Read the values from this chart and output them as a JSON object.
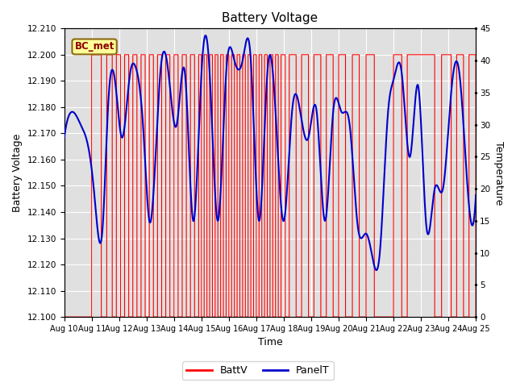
{
  "title": "Battery Voltage",
  "xlabel": "Time",
  "ylabel_left": "Battery Voltage",
  "ylabel_right": "Temperature",
  "station_label": "BC_met",
  "xlim": [
    0,
    15
  ],
  "ylim_left": [
    12.1,
    12.21
  ],
  "ylim_right": [
    0,
    45
  ],
  "yticks_left": [
    12.1,
    12.11,
    12.12,
    12.13,
    12.14,
    12.15,
    12.16,
    12.17,
    12.18,
    12.19,
    12.2,
    12.21
  ],
  "yticks_right": [
    0,
    5,
    10,
    15,
    20,
    25,
    30,
    35,
    40,
    45
  ],
  "xtick_labels": [
    "Aug 10",
    "Aug 11",
    "Aug 12",
    "Aug 13",
    "Aug 14",
    "Aug 15",
    "Aug 16",
    "Aug 17",
    "Aug 18",
    "Aug 19",
    "Aug 20",
    "Aug 21",
    "Aug 22",
    "Aug 23",
    "Aug 24",
    "Aug 25"
  ],
  "battv_color": "#FF0000",
  "panel_color": "#0000CC",
  "bg_color": "#E0E0E0",
  "legend_bg": "#FFFF99",
  "legend_border": "#8B6914",
  "battv_transitions": [
    [
      0.0,
      0
    ],
    [
      1.0,
      1
    ],
    [
      1.35,
      0
    ],
    [
      1.55,
      1
    ],
    [
      1.75,
      0
    ],
    [
      1.9,
      1
    ],
    [
      2.05,
      0
    ],
    [
      2.2,
      1
    ],
    [
      2.35,
      0
    ],
    [
      2.5,
      1
    ],
    [
      2.65,
      0
    ],
    [
      2.8,
      1
    ],
    [
      2.95,
      0
    ],
    [
      3.1,
      1
    ],
    [
      3.25,
      0
    ],
    [
      3.4,
      1
    ],
    [
      3.55,
      0
    ],
    [
      3.7,
      1
    ],
    [
      3.85,
      0
    ],
    [
      4.0,
      1
    ],
    [
      4.15,
      0
    ],
    [
      4.3,
      1
    ],
    [
      4.45,
      0
    ],
    [
      4.6,
      1
    ],
    [
      4.75,
      0
    ],
    [
      4.9,
      1
    ],
    [
      5.0,
      0
    ],
    [
      5.1,
      1
    ],
    [
      5.2,
      0
    ],
    [
      5.3,
      1
    ],
    [
      5.4,
      0
    ],
    [
      5.5,
      1
    ],
    [
      5.6,
      0
    ],
    [
      5.7,
      1
    ],
    [
      5.8,
      0
    ],
    [
      5.9,
      1
    ],
    [
      6.0,
      0
    ],
    [
      6.1,
      1
    ],
    [
      6.2,
      0
    ],
    [
      6.3,
      1
    ],
    [
      6.4,
      0
    ],
    [
      6.5,
      1
    ],
    [
      6.6,
      0
    ],
    [
      6.7,
      1
    ],
    [
      6.8,
      0
    ],
    [
      6.9,
      1
    ],
    [
      7.0,
      0
    ],
    [
      7.1,
      1
    ],
    [
      7.2,
      0
    ],
    [
      7.3,
      1
    ],
    [
      7.4,
      0
    ],
    [
      7.5,
      1
    ],
    [
      7.6,
      0
    ],
    [
      7.7,
      1
    ],
    [
      7.8,
      0
    ],
    [
      7.9,
      1
    ],
    [
      8.05,
      0
    ],
    [
      8.2,
      1
    ],
    [
      8.45,
      0
    ],
    [
      8.65,
      1
    ],
    [
      8.9,
      0
    ],
    [
      9.1,
      1
    ],
    [
      9.35,
      0
    ],
    [
      9.55,
      1
    ],
    [
      9.8,
      0
    ],
    [
      10.0,
      1
    ],
    [
      10.25,
      0
    ],
    [
      10.5,
      1
    ],
    [
      10.75,
      0
    ],
    [
      11.0,
      1
    ],
    [
      11.3,
      0
    ],
    [
      12.0,
      1
    ],
    [
      12.3,
      0
    ],
    [
      12.5,
      1
    ],
    [
      13.5,
      0
    ],
    [
      13.75,
      1
    ],
    [
      14.1,
      0
    ],
    [
      14.3,
      1
    ],
    [
      14.55,
      0
    ],
    [
      14.75,
      1
    ],
    [
      15.0,
      0
    ]
  ],
  "panel_t_times": [
    0.0,
    0.3,
    0.6,
    0.9,
    1.1,
    1.4,
    1.6,
    1.9,
    2.1,
    2.4,
    2.6,
    2.9,
    3.1,
    3.5,
    3.8,
    4.1,
    4.4,
    4.7,
    5.0,
    5.3,
    5.6,
    5.9,
    6.2,
    6.5,
    6.8,
    7.1,
    7.4,
    7.7,
    8.0,
    8.3,
    8.6,
    8.9,
    9.2,
    9.5,
    9.8,
    10.1,
    10.4,
    10.7,
    11.0,
    11.2,
    11.5,
    11.8,
    12.0,
    12.3,
    12.6,
    12.9,
    13.2,
    13.5,
    13.8,
    14.1,
    14.4,
    14.7,
    15.0
  ],
  "panel_t_vals": [
    28,
    32,
    30,
    26,
    19,
    14,
    33,
    35,
    28,
    38,
    39,
    28,
    15,
    38,
    38,
    30,
    38,
    15,
    38,
    38,
    15,
    38,
    40,
    40,
    40,
    15,
    38,
    32,
    15,
    32,
    32,
    28,
    32,
    15,
    32,
    32,
    30,
    14,
    13,
    10,
    10,
    32,
    37,
    38,
    25,
    36,
    14,
    20,
    20,
    35,
    38,
    20,
    19
  ]
}
